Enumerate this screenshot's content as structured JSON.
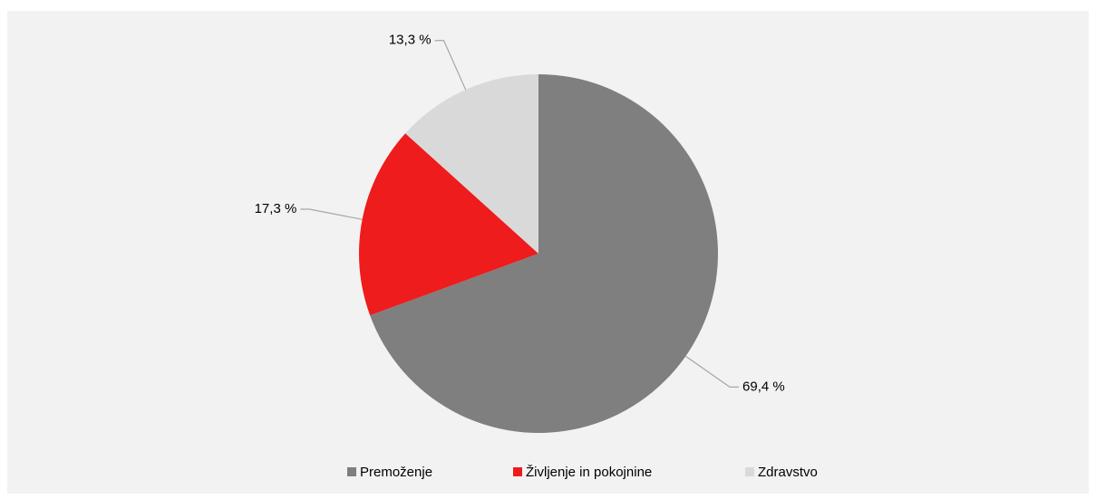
{
  "chart_data": {
    "type": "pie",
    "categories": [
      "Premoženje",
      "Življenje in pokojnine",
      "Zdravstvo"
    ],
    "values": [
      69.4,
      17.3,
      13.3
    ],
    "value_labels": [
      "69,4 %",
      "17,3 %",
      "13,3 %"
    ],
    "colors": [
      "#7f7f7f",
      "#ee1c1c",
      "#d9d9d9"
    ],
    "legend": "bottom"
  }
}
